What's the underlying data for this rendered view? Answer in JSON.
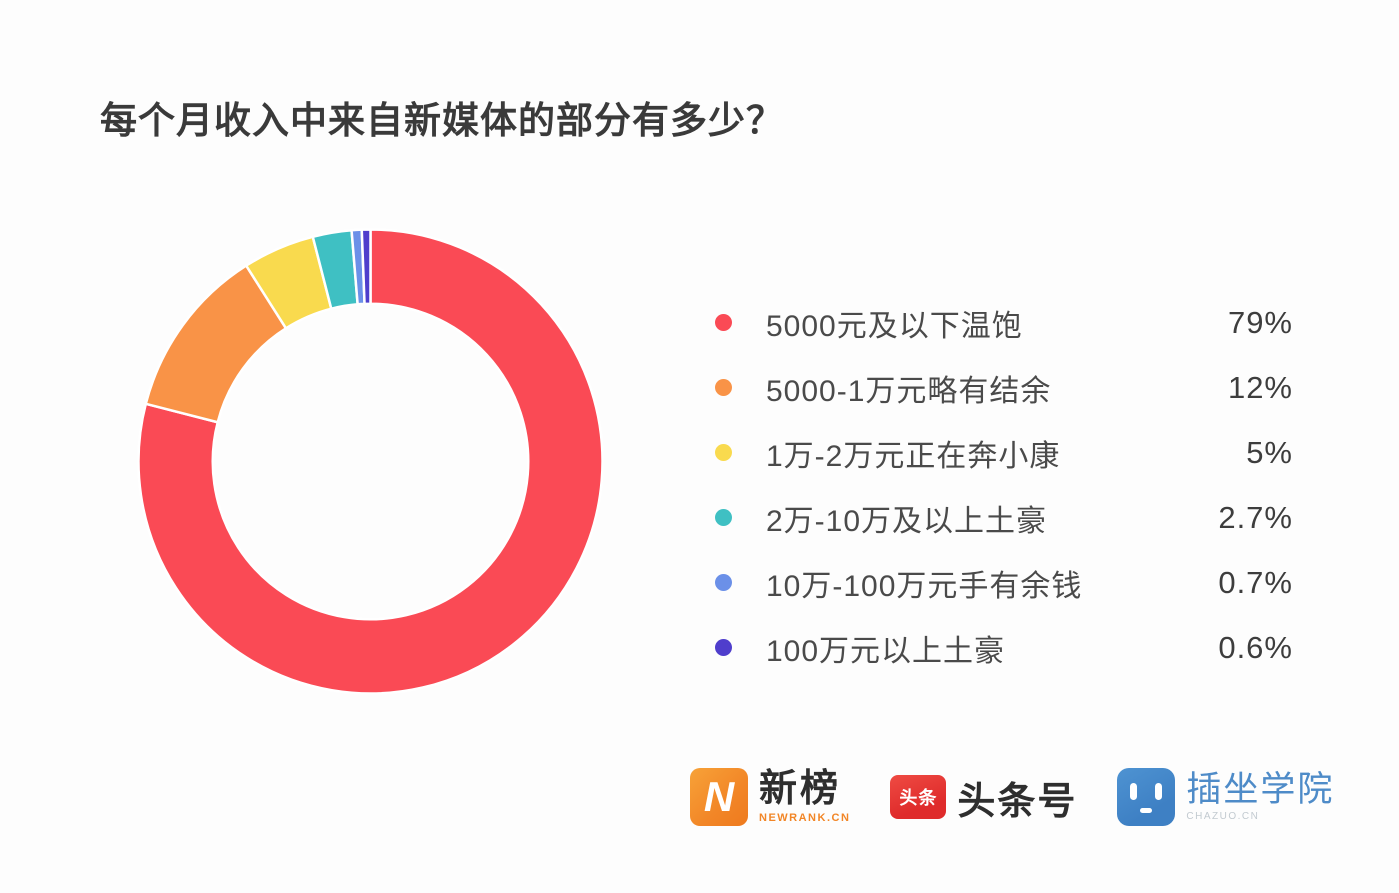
{
  "page": {
    "title": "每个月收入中来自新媒体的部分有多少？"
  },
  "chart_data": {
    "type": "pie",
    "subtype": "donut",
    "title": "每个月收入中来自新媒体的部分有多少？",
    "categories": [
      "5000元及以下温饱",
      "5000-1万元略有结余",
      "1万-2万元正在奔小康",
      "2万-10万及以上土豪",
      "10万-100万元手有余钱",
      "100万元以上土豪"
    ],
    "values": [
      79,
      12,
      5,
      2.7,
      0.7,
      0.6
    ],
    "labels_pct": [
      "79%",
      "12%",
      "5%",
      "2.7%",
      "0.7%",
      "0.6%"
    ],
    "colors": [
      "#fa4a55",
      "#f99347",
      "#f9da4e",
      "#3fc0c3",
      "#6b90e8",
      "#4f3ecc"
    ],
    "start_angle_deg": 0,
    "direction": "clockwise",
    "donut_hole_ratio": 0.68,
    "legend_position": "right"
  },
  "footer": {
    "logos": [
      {
        "name": "newrank",
        "icon_letter": "N",
        "text": "新榜",
        "subtext": "NEWRANK.CN",
        "brand_color": "#f28627"
      },
      {
        "name": "toutiao",
        "icon_text": "头条",
        "text": "头条号",
        "brand_color": "#df2b2b"
      },
      {
        "name": "chazuo",
        "text": "插坐学院",
        "subtext": "CHAZUO.CN",
        "brand_color": "#3e80c4"
      }
    ]
  }
}
